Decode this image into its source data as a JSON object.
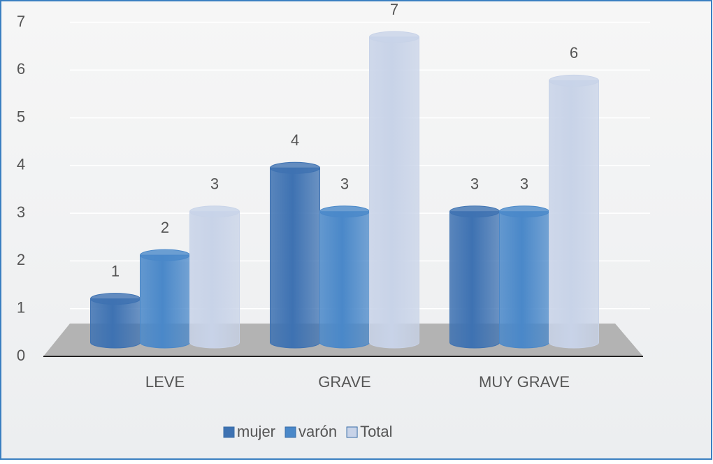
{
  "chart_data": {
    "type": "bar",
    "categories": [
      "LEVE",
      "GRAVE",
      "MUY GRAVE"
    ],
    "series": [
      {
        "name": "mujer",
        "color": "#3e72b2",
        "values": [
          1,
          4,
          3
        ]
      },
      {
        "name": "varón",
        "color": "#4a88c9",
        "values": [
          2,
          3,
          3
        ]
      },
      {
        "name": "Total",
        "color": "#c8d3e8",
        "values": [
          3,
          7,
          6
        ]
      }
    ],
    "ylim": [
      0,
      7
    ],
    "yticks": [
      0,
      1,
      2,
      3,
      4,
      5,
      6,
      7
    ],
    "grid": true,
    "legend": "bottom"
  }
}
